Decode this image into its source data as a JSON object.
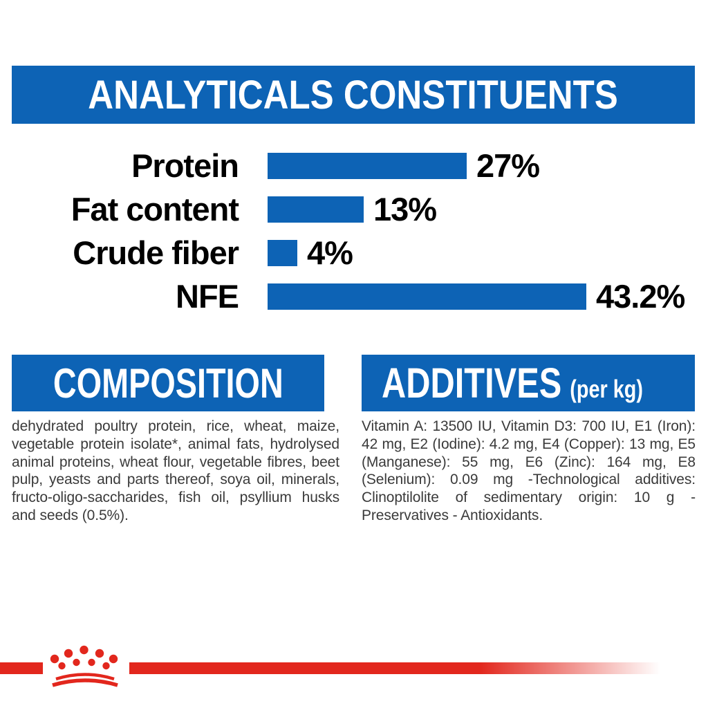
{
  "colors": {
    "banner_blue": "#0d63b5",
    "brand_red": "#e2271d",
    "body_text": "#3a3a3a"
  },
  "header": {
    "title": "ANALYTICALS CONSTITUENTS"
  },
  "chart_data": {
    "type": "bar",
    "orientation": "horizontal",
    "title": "ANALYTICALS CONSTITUENTS",
    "categories": [
      "Protein",
      "Fat content",
      "Crude fiber",
      "NFE"
    ],
    "values": [
      27,
      13,
      4,
      43.2
    ],
    "value_labels": [
      "27%",
      "13%",
      "4%",
      "43.2%"
    ],
    "unit": "%",
    "xlim": [
      0,
      45
    ],
    "bar_color": "#0d63b5",
    "grid": false,
    "legend": false
  },
  "composition": {
    "title": "COMPOSITION",
    "body": "dehydrated poultry protein, rice, wheat, maize, vegetable protein isolate*, animal fats, hydrolysed animal proteins, wheat flour, vegetable fibres, beet pulp, yeasts and parts thereof, soya oil, minerals, fructo-oligo-saccharides, fish oil, psyllium husks and seeds (0.5%)."
  },
  "additives": {
    "title": "ADDITIVES",
    "subtitle": "(per kg)",
    "body": "Vitamin A: 13500 IU, Vitamin D3: 700 IU, E1 (Iron): 42 mg, E2 (Iodine): 4.2 mg, E4 (Copper): 13 mg, E5 (Manganese): 55 mg, E6 (Zinc): 164 mg, E8 (Selenium): 0.09 mg -Technological additives: Clinoptilolite of sedimentary origin: 10 g - Preservatives - Antioxidants."
  },
  "footer": {
    "logo": "royal-canin-crown"
  }
}
